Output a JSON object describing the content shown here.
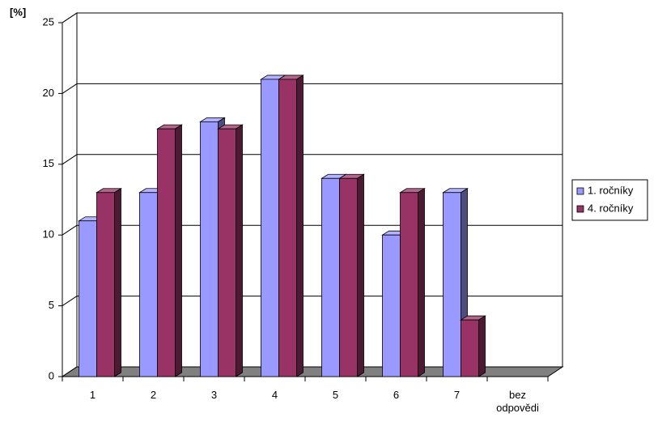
{
  "chart_data": {
    "type": "bar3d",
    "y_axis_label": "[%]",
    "categories": [
      "1",
      "2",
      "3",
      "4",
      "5",
      "6",
      "7",
      "bez odpovědi"
    ],
    "series": [
      {
        "name": "1. ročníky",
        "color": "#9999ff",
        "values": [
          11,
          13,
          18,
          21,
          14,
          10,
          13,
          null
        ]
      },
      {
        "name": "4. ročníky",
        "color": "#993366",
        "values": [
          13,
          17.5,
          17.5,
          21,
          14,
          13,
          4,
          null
        ]
      }
    ],
    "ylim": [
      0,
      25
    ],
    "yticks": [
      0,
      5,
      10,
      15,
      20,
      25
    ],
    "grid": true,
    "legend": "right"
  }
}
